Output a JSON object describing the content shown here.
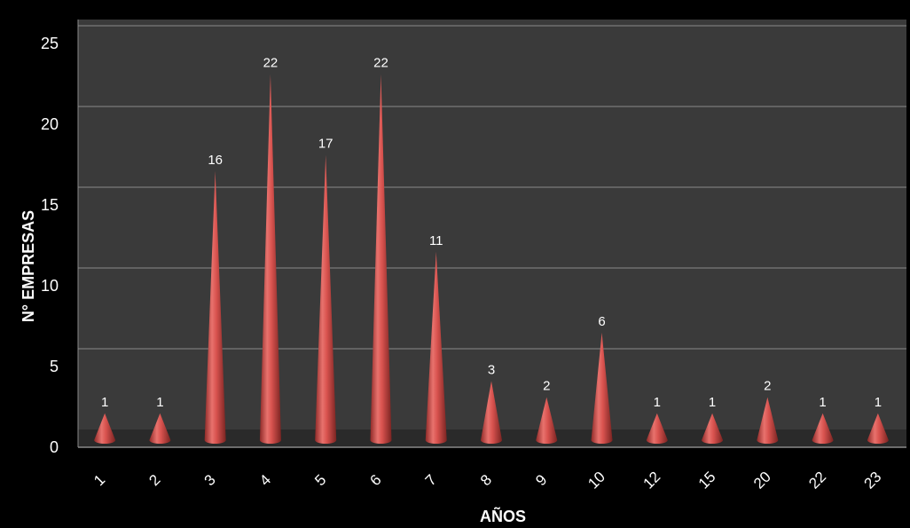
{
  "chart_data": {
    "type": "bar",
    "bar_shape": "cone",
    "xlabel": "AÑOS",
    "ylabel": "N° EMPRESAS",
    "categories": [
      "1",
      "2",
      "3",
      "4",
      "5",
      "6",
      "7",
      "8",
      "9",
      "10",
      "12",
      "15",
      "20",
      "22",
      "23"
    ],
    "values": [
      1,
      1,
      16,
      22,
      17,
      22,
      11,
      3,
      2,
      6,
      1,
      1,
      2,
      1,
      1
    ],
    "ylim": [
      0,
      25
    ],
    "yticks": [
      "0",
      "5",
      "10",
      "15",
      "20",
      "25"
    ],
    "data_labels": true,
    "grid": true,
    "legend": "none",
    "colors": {
      "background": "#000000",
      "plot_area": "#3a3a3a",
      "floor": "#2a2a2a",
      "gridline": "#8a8a8a",
      "bar": "#d9534f",
      "text": "#ffffff"
    }
  }
}
